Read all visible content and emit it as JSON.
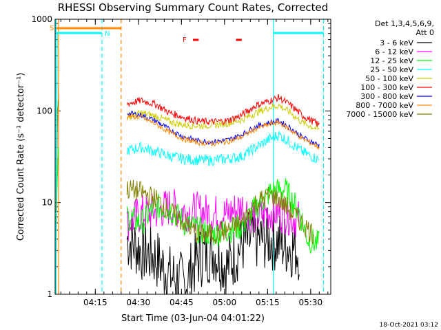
{
  "chart_data": {
    "type": "line",
    "title": "RHESSI Observing Summary Count Rates, Corrected",
    "ylabel": "Corrected Count Rate (s⁻¹ detector⁻¹)",
    "xlabel": "Start Time (03-Jun-04 04:01:22)",
    "yscale": "log",
    "ylim": [
      1,
      1000
    ],
    "xlim_minutes": [
      0,
      96
    ],
    "x_ticks": [
      {
        "min": 14,
        "label": "04:15"
      },
      {
        "min": 29,
        "label": "04:30"
      },
      {
        "min": 44,
        "label": "04:45"
      },
      {
        "min": 59,
        "label": "05:00"
      },
      {
        "min": 74,
        "label": "05:15"
      },
      {
        "min": 89,
        "label": "05:30"
      }
    ],
    "y_ticks": [
      {
        "value": 1,
        "label": "1"
      },
      {
        "value": 10,
        "label": "10"
      },
      {
        "value": 100,
        "label": "100"
      },
      {
        "value": 1000,
        "label": "1000"
      }
    ],
    "legend_header": [
      "Det 1,3,4,5,6,9,",
      "Att 0"
    ],
    "series": [
      {
        "name": "3 - 6 keV",
        "color": "#000000",
        "x": [
          25,
          30,
          35,
          40,
          45,
          50,
          55,
          60,
          65,
          70,
          75,
          80,
          85
        ],
        "values": [
          4,
          3,
          2.5,
          1.6,
          1.3,
          2.5,
          3,
          2,
          3.5,
          4,
          4,
          3.5,
          3
        ]
      },
      {
        "name": "6 - 12 keV",
        "color": "#ff00ff",
        "x": [
          25,
          30,
          35,
          40,
          45,
          50,
          55,
          60,
          65,
          70,
          75,
          80,
          85
        ],
        "values": [
          6,
          7.5,
          8,
          9,
          8,
          8,
          7.5,
          7.5,
          9,
          7,
          8,
          7.5,
          6.5
        ]
      },
      {
        "name": "12 - 25 keV",
        "color": "#00ff00",
        "x": [
          25,
          30,
          35,
          40,
          45,
          50,
          55,
          60,
          65,
          70,
          75,
          80,
          85,
          88,
          92
        ],
        "values": [
          7,
          6,
          9,
          8.5,
          6,
          5,
          4.5,
          5,
          5.5,
          9,
          13,
          14,
          8,
          4,
          3.5
        ]
      },
      {
        "name": "25 - 50 keV",
        "color": "#00ffff",
        "x": [
          25,
          30,
          35,
          40,
          45,
          50,
          55,
          60,
          65,
          70,
          75,
          78,
          82,
          86,
          92
        ],
        "values": [
          37,
          40,
          36,
          32,
          30,
          29,
          29,
          30,
          32,
          40,
          50,
          55,
          45,
          36,
          29
        ]
      },
      {
        "name": "50 - 100 keV",
        "color": "#cccc00",
        "x": [
          25,
          30,
          35,
          40,
          45,
          50,
          55,
          60,
          65,
          70,
          75,
          78,
          82,
          86,
          92
        ],
        "values": [
          85,
          95,
          88,
          76,
          70,
          69,
          70,
          73,
          80,
          95,
          110,
          115,
          95,
          75,
          62
        ]
      },
      {
        "name": "100 - 300 keV",
        "color": "#ff0000",
        "x": [
          25,
          30,
          35,
          40,
          45,
          50,
          55,
          60,
          65,
          70,
          75,
          78,
          82,
          86,
          92
        ],
        "values": [
          120,
          130,
          118,
          95,
          85,
          77,
          76,
          78,
          90,
          115,
          130,
          140,
          115,
          90,
          70
        ]
      },
      {
        "name": "300 - 800 keV",
        "color": "#0000ff",
        "x": [
          25,
          30,
          35,
          40,
          45,
          50,
          55,
          60,
          65,
          70,
          75,
          78,
          82,
          86,
          92
        ],
        "values": [
          95,
          90,
          78,
          62,
          52,
          47,
          46,
          48,
          55,
          68,
          75,
          78,
          65,
          52,
          42
        ]
      },
      {
        "name": "800 - 7000 keV",
        "color": "#ff8800",
        "x": [
          25,
          30,
          35,
          40,
          45,
          50,
          55,
          60,
          65,
          70,
          75,
          78,
          82,
          86,
          92
        ],
        "values": [
          88,
          85,
          72,
          58,
          49,
          45,
          44,
          46,
          52,
          64,
          72,
          75,
          62,
          50,
          40
        ]
      },
      {
        "name": "7000 - 15000 keV",
        "color": "#808000",
        "x": [
          25,
          30,
          35,
          40,
          45,
          50,
          55,
          60,
          65,
          70,
          75,
          78,
          82,
          86,
          90
        ],
        "values": [
          14,
          13,
          11,
          8,
          6,
          4.5,
          4.5,
          5,
          6,
          10,
          12,
          11,
          8,
          6,
          4.5
        ]
      }
    ],
    "annotations": [
      {
        "label": "S",
        "color": "#ff8800"
      },
      {
        "label": "N",
        "color": "#00ffff"
      },
      {
        "label": "F",
        "color": "#ff0000"
      }
    ]
  },
  "timestamp": "18-Oct-2021 03:12",
  "annotation_colors": {
    "saa": "#ff8800",
    "night": "#00ffff",
    "flare": "#ff0000"
  }
}
